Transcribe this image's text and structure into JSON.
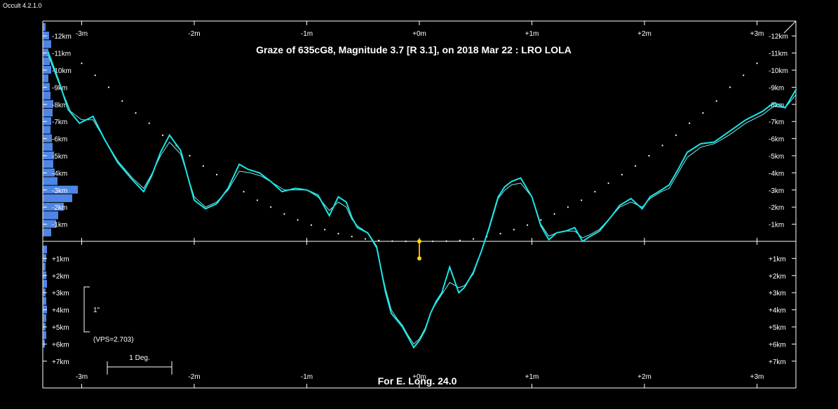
{
  "app": {
    "title": "Occult 4.2.1.0"
  },
  "chart_data": {
    "type": "line",
    "title": "Graze of  635cG8,  Magnitude 3.7 [R 3.1],  on 2018 Mar 22  :  LRO LOLA",
    "footer": "For E. Long. 24.0",
    "x_unit": "minutes",
    "y_unit": "km",
    "xlim": [
      -3.3,
      3.4
    ],
    "ylim": [
      -12.6,
      7.5
    ],
    "x_ticks": [
      -3,
      -2,
      -1,
      0,
      1,
      2,
      3
    ],
    "x_tick_labels": [
      "-3m",
      "-2m",
      "-1m",
      "+0m",
      "+1m",
      "+2m",
      "+3m"
    ],
    "y_ticks": [
      -12,
      -11,
      -10,
      -9,
      -8,
      -7,
      -6,
      -5,
      -4,
      -3,
      -2,
      -1,
      1,
      2,
      3,
      4,
      5,
      6,
      7
    ],
    "y_tick_labels": [
      "-12km",
      "-11km",
      "-10km",
      "-9km",
      "-8km",
      "-7km",
      "-6km",
      "-5km",
      "-4km",
      "-3km",
      "-2km",
      "-1km",
      "+1km",
      "+2km",
      "+3km",
      "+4km",
      "+5km",
      "+6km",
      "+7km"
    ],
    "profile_detailed": {
      "x": [
        -3.3,
        -3.2,
        -3.12,
        -3.02,
        -2.9,
        -2.8,
        -2.68,
        -2.55,
        -2.45,
        -2.38,
        -2.3,
        -2.22,
        -2.12,
        -2.0,
        -1.9,
        -1.8,
        -1.7,
        -1.6,
        -1.52,
        -1.42,
        -1.32,
        -1.22,
        -1.1,
        -1.0,
        -0.9,
        -0.8,
        -0.72,
        -0.65,
        -0.6,
        -0.55,
        -0.46,
        -0.38,
        -0.3,
        -0.25,
        -0.2,
        -0.15,
        -0.1,
        -0.05,
        0.0,
        0.05,
        0.1,
        0.15,
        0.2,
        0.27,
        0.35,
        0.4,
        0.48,
        0.55,
        0.62,
        0.7,
        0.76,
        0.82,
        0.9,
        1.0,
        1.08,
        1.15,
        1.22,
        1.3,
        1.38,
        1.45,
        1.52,
        1.6,
        1.7,
        1.78,
        1.88,
        1.98,
        2.05,
        2.15,
        2.22,
        2.3,
        2.38,
        2.5,
        2.62,
        2.75,
        2.9,
        3.05,
        3.15,
        3.25,
        3.35
      ],
      "y": [
        -11.1,
        -9.3,
        -7.7,
        -6.9,
        -7.3,
        -6.0,
        -4.6,
        -3.6,
        -2.9,
        -3.8,
        -5.2,
        -6.2,
        -5.3,
        -2.4,
        -1.9,
        -2.2,
        -3.1,
        -4.5,
        -4.2,
        -4.0,
        -3.5,
        -2.9,
        -3.1,
        -3.0,
        -2.7,
        -1.5,
        -2.6,
        -2.3,
        -1.4,
        -0.8,
        -0.5,
        0.3,
        3.0,
        4.2,
        4.6,
        5.0,
        5.6,
        6.2,
        5.8,
        5.2,
        4.2,
        3.5,
        3.0,
        1.5,
        3.0,
        2.7,
        1.8,
        0.6,
        -0.8,
        -2.6,
        -3.2,
        -3.5,
        -3.7,
        -2.6,
        -0.9,
        -0.1,
        -0.5,
        -0.6,
        -0.8,
        0.0,
        -0.3,
        -0.6,
        -1.4,
        -2.1,
        -2.5,
        -1.9,
        -2.6,
        -3.0,
        -3.3,
        -4.2,
        -5.2,
        -5.7,
        -5.8,
        -6.4,
        -7.1,
        -7.6,
        -8.1,
        -7.8,
        -8.9
      ]
    },
    "profile_smooth": {
      "x": [
        -3.3,
        -3.2,
        -3.1,
        -3.0,
        -2.9,
        -2.8,
        -2.68,
        -2.55,
        -2.45,
        -2.38,
        -2.3,
        -2.22,
        -2.12,
        -2.0,
        -1.9,
        -1.8,
        -1.7,
        -1.6,
        -1.5,
        -1.4,
        -1.3,
        -1.2,
        -1.1,
        -1.0,
        -0.9,
        -0.8,
        -0.72,
        -0.65,
        -0.6,
        -0.55,
        -0.46,
        -0.38,
        -0.3,
        -0.25,
        -0.2,
        -0.15,
        -0.1,
        -0.05,
        0.0,
        0.05,
        0.1,
        0.15,
        0.2,
        0.27,
        0.35,
        0.4,
        0.48,
        0.55,
        0.62,
        0.7,
        0.76,
        0.82,
        0.9,
        1.0,
        1.08,
        1.15,
        1.22,
        1.3,
        1.38,
        1.45,
        1.52,
        1.6,
        1.7,
        1.78,
        1.88,
        1.98,
        2.05,
        2.15,
        2.22,
        2.3,
        2.38,
        2.5,
        2.62,
        2.75,
        2.9,
        3.05,
        3.15,
        3.25,
        3.35
      ],
      "y": [
        -10.9,
        -9.2,
        -7.6,
        -7.1,
        -7.1,
        -6.0,
        -4.7,
        -3.7,
        -3.1,
        -3.9,
        -5.0,
        -5.8,
        -5.1,
        -2.6,
        -2.0,
        -2.3,
        -3.0,
        -4.1,
        -4.0,
        -3.8,
        -3.4,
        -3.0,
        -3.0,
        -3.0,
        -2.6,
        -1.8,
        -2.3,
        -2.0,
        -1.3,
        -0.9,
        -0.5,
        0.4,
        2.8,
        4.0,
        4.5,
        4.9,
        5.5,
        6.0,
        5.7,
        5.1,
        4.2,
        3.6,
        3.1,
        2.4,
        2.7,
        2.6,
        1.9,
        0.6,
        -0.7,
        -2.5,
        -3.0,
        -3.3,
        -3.4,
        -2.6,
        -1.0,
        -0.3,
        -0.5,
        -0.6,
        -0.6,
        -0.2,
        -0.4,
        -0.7,
        -1.4,
        -2.0,
        -2.3,
        -2.0,
        -2.5,
        -2.9,
        -3.1,
        -4.0,
        -4.9,
        -5.5,
        -5.7,
        -6.2,
        -6.9,
        -7.4,
        -7.9,
        -7.8,
        -8.6
      ]
    },
    "limb_dots": {
      "x": [
        -3.0,
        -2.88,
        -2.76,
        -2.64,
        -2.52,
        -2.4,
        -2.28,
        -2.16,
        -2.04,
        -1.92,
        -1.8,
        -1.68,
        -1.56,
        -1.44,
        -1.32,
        -1.2,
        -1.08,
        -0.96,
        -0.84,
        -0.72,
        -0.6,
        -0.48,
        -0.36,
        -0.24,
        -0.12,
        0.0,
        0.12,
        0.24,
        0.36,
        0.48,
        0.6,
        0.72,
        0.84,
        0.96,
        1.08,
        1.2,
        1.32,
        1.44,
        1.56,
        1.68,
        1.8,
        1.92,
        2.04,
        2.16,
        2.28,
        2.4,
        2.52,
        2.64,
        2.76,
        2.88,
        3.0
      ],
      "y": [
        -10.4,
        -9.7,
        -9.0,
        -8.2,
        -7.5,
        -6.9,
        -6.2,
        -5.6,
        -5.0,
        -4.4,
        -3.9,
        -3.4,
        -2.9,
        -2.4,
        -2.0,
        -1.6,
        -1.25,
        -0.95,
        -0.68,
        -0.45,
        -0.28,
        -0.14,
        -0.05,
        -0.01,
        0.0,
        0.0,
        0.0,
        -0.01,
        -0.05,
        -0.14,
        -0.28,
        -0.45,
        -0.68,
        -0.95,
        -1.25,
        -1.6,
        -2.0,
        -2.4,
        -2.9,
        -3.4,
        -3.9,
        -4.4,
        -5.0,
        -5.6,
        -6.2,
        -6.9,
        -7.5,
        -8.2,
        -9.0,
        -9.7,
        -10.4
      ]
    },
    "star_path": {
      "x": [
        0.0,
        0.0
      ],
      "y": [
        0.0,
        1.0
      ]
    },
    "limb_histogram": {
      "y": [
        -12.5,
        -12.0,
        -11.5,
        -11.0,
        -10.5,
        -10.0,
        -9.5,
        -9.0,
        -8.5,
        -8.0,
        -7.5,
        -7.0,
        -6.5,
        -6.0,
        -5.5,
        -5.0,
        -4.5,
        -4.0,
        -3.5,
        -3.0,
        -2.5,
        -2.0,
        -1.5,
        -1.0,
        -0.5,
        0.5,
        1.0,
        1.5,
        2.0,
        2.5,
        3.0,
        3.5,
        4.0,
        4.5,
        5.0,
        5.5,
        6.0
      ],
      "value": [
        4,
        9,
        12,
        8,
        10,
        12,
        8,
        10,
        11,
        15,
        14,
        12,
        11,
        13,
        14,
        16,
        15,
        17,
        21,
        50,
        42,
        30,
        22,
        19,
        12,
        6,
        5,
        4,
        5,
        6,
        4,
        5,
        6,
        5,
        4,
        5,
        3
      ]
    },
    "scale_marker": {
      "label": "1\"",
      "note": "(VPS=2.703)"
    },
    "degree_bar": {
      "label": "1 Deg."
    },
    "colors": {
      "background": "#000000",
      "frame": "#ffffff",
      "profile": "#19e6e6",
      "profile_smooth": "#7ff0f0",
      "limb_dots": "#ffffff",
      "star_path": "#ffa500",
      "histogram": "#4f86e6"
    }
  }
}
